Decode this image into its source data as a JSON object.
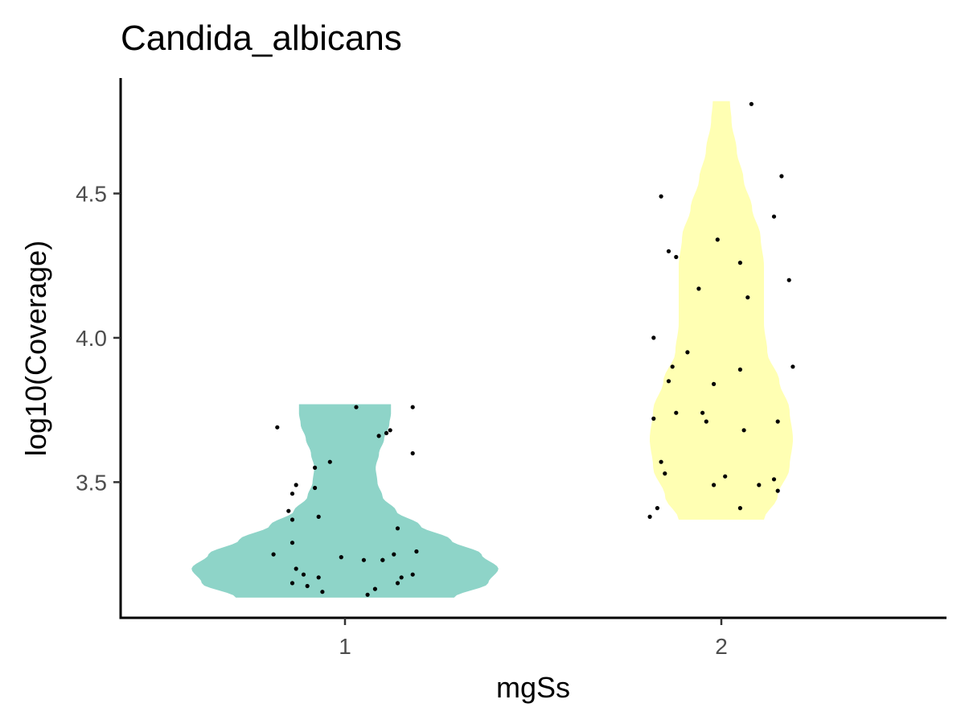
{
  "chart_data": {
    "type": "violin",
    "title": "Candida_albicans",
    "xlabel": "mgSs",
    "ylabel": "log10(Coverage)",
    "categories": [
      "1",
      "2"
    ],
    "yticks": [
      3.5,
      4.0,
      4.5
    ],
    "ytick_labels": [
      "3.5",
      "4.0",
      "4.5"
    ],
    "ylim": [
      3.03,
      4.9
    ],
    "grid": false,
    "legend": "none",
    "series": [
      {
        "category": "1",
        "color": "#8ed4c8",
        "range": [
          3.1,
          3.77
        ],
        "density": [
          [
            3.1,
            0.64
          ],
          [
            3.15,
            0.84
          ],
          [
            3.2,
            0.9
          ],
          [
            3.25,
            0.8
          ],
          [
            3.3,
            0.62
          ],
          [
            3.35,
            0.44
          ],
          [
            3.4,
            0.3
          ],
          [
            3.45,
            0.22
          ],
          [
            3.5,
            0.19
          ],
          [
            3.55,
            0.18
          ],
          [
            3.6,
            0.2
          ],
          [
            3.65,
            0.23
          ],
          [
            3.7,
            0.26
          ],
          [
            3.74,
            0.27
          ],
          [
            3.77,
            0.27
          ]
        ],
        "points": [
          [
            0.82,
            3.69
          ],
          [
            1.03,
            3.76
          ],
          [
            1.18,
            3.76
          ],
          [
            1.12,
            3.68
          ],
          [
            1.11,
            3.67
          ],
          [
            1.09,
            3.66
          ],
          [
            1.18,
            3.6
          ],
          [
            0.96,
            3.57
          ],
          [
            0.92,
            3.55
          ],
          [
            0.87,
            3.49
          ],
          [
            0.86,
            3.46
          ],
          [
            0.92,
            3.48
          ],
          [
            0.85,
            3.4
          ],
          [
            0.86,
            3.37
          ],
          [
            0.93,
            3.38
          ],
          [
            1.14,
            3.34
          ],
          [
            0.86,
            3.29
          ],
          [
            0.81,
            3.25
          ],
          [
            0.99,
            3.24
          ],
          [
            1.05,
            3.23
          ],
          [
            1.1,
            3.23
          ],
          [
            1.13,
            3.25
          ],
          [
            1.19,
            3.26
          ],
          [
            0.87,
            3.2
          ],
          [
            0.89,
            3.18
          ],
          [
            0.93,
            3.17
          ],
          [
            1.18,
            3.18
          ],
          [
            1.15,
            3.17
          ],
          [
            1.14,
            3.15
          ],
          [
            0.86,
            3.15
          ],
          [
            0.9,
            3.14
          ],
          [
            0.94,
            3.12
          ],
          [
            1.08,
            3.13
          ],
          [
            1.06,
            3.11
          ],
          [
            1.1,
            3.23
          ]
        ]
      },
      {
        "category": "2",
        "color": "#ffffb3",
        "range": [
          3.37,
          4.82
        ],
        "density": [
          [
            3.37,
            0.25
          ],
          [
            3.45,
            0.33
          ],
          [
            3.55,
            0.4
          ],
          [
            3.65,
            0.42
          ],
          [
            3.75,
            0.4
          ],
          [
            3.85,
            0.34
          ],
          [
            3.95,
            0.27
          ],
          [
            4.05,
            0.25
          ],
          [
            4.15,
            0.25
          ],
          [
            4.25,
            0.25
          ],
          [
            4.35,
            0.23
          ],
          [
            4.45,
            0.18
          ],
          [
            4.55,
            0.13
          ],
          [
            4.65,
            0.09
          ],
          [
            4.75,
            0.06
          ],
          [
            4.82,
            0.05
          ]
        ],
        "points": [
          [
            2.08,
            4.81
          ],
          [
            2.16,
            4.56
          ],
          [
            2.14,
            4.42
          ],
          [
            1.84,
            4.49
          ],
          [
            1.99,
            4.34
          ],
          [
            1.86,
            4.3
          ],
          [
            1.88,
            4.28
          ],
          [
            2.05,
            4.26
          ],
          [
            2.18,
            4.2
          ],
          [
            1.94,
            4.17
          ],
          [
            2.07,
            4.14
          ],
          [
            1.82,
            4.0
          ],
          [
            1.91,
            3.95
          ],
          [
            1.87,
            3.9
          ],
          [
            2.19,
            3.9
          ],
          [
            2.05,
            3.89
          ],
          [
            1.86,
            3.85
          ],
          [
            1.98,
            3.84
          ],
          [
            1.88,
            3.74
          ],
          [
            1.95,
            3.74
          ],
          [
            1.96,
            3.71
          ],
          [
            1.82,
            3.72
          ],
          [
            2.15,
            3.71
          ],
          [
            2.06,
            3.68
          ],
          [
            1.84,
            3.57
          ],
          [
            1.85,
            3.53
          ],
          [
            2.01,
            3.52
          ],
          [
            1.98,
            3.49
          ],
          [
            2.14,
            3.51
          ],
          [
            2.1,
            3.49
          ],
          [
            2.15,
            3.47
          ],
          [
            2.05,
            3.41
          ],
          [
            1.83,
            3.41
          ],
          [
            1.81,
            3.38
          ]
        ]
      }
    ]
  }
}
